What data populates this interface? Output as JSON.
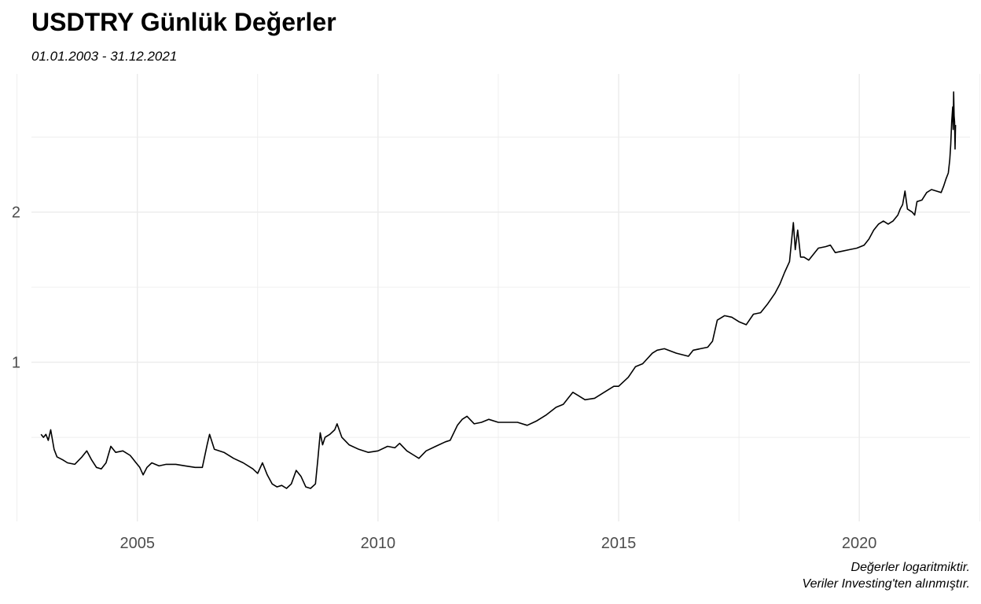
{
  "header": {
    "title": "USDTRY Günlük Değerler",
    "subtitle": "01.01.2003 - 31.12.2021"
  },
  "caption": {
    "line1": "Değerler logaritmiktir.",
    "line2": "Veriler Investing'ten alınmıştır."
  },
  "colors": {
    "line": "#000000",
    "grid": "#ebebeb",
    "tick": "#4d4d4d"
  },
  "chart_data": {
    "type": "line",
    "title": "USDTRY Günlük Değerler",
    "subtitle": "01.01.2003 - 31.12.2021",
    "xlabel": "",
    "ylabel": "",
    "scale_note": "log",
    "grid": true,
    "legend": "none",
    "xlim": [
      2002.8,
      2022.3
    ],
    "ylim": [
      -0.06,
      2.92
    ],
    "x_ticks": [
      2005,
      2010,
      2015,
      2020
    ],
    "x_tick_labels": [
      "2005",
      "2010",
      "2015",
      "2020"
    ],
    "y_ticks": [
      1,
      2
    ],
    "y_tick_labels": [
      "1",
      "2"
    ],
    "series": [
      {
        "x": [
          2003.0,
          2003.05,
          2003.1,
          2003.15,
          2003.2,
          2003.27,
          2003.33,
          2003.45,
          2003.55,
          2003.7,
          2003.85,
          2003.95,
          2004.05,
          2004.15,
          2004.25,
          2004.35,
          2004.45,
          2004.55,
          2004.7,
          2004.85,
          2004.9,
          2004.95,
          2005.05,
          2005.12,
          2005.2,
          2005.3,
          2005.45,
          2005.6,
          2005.8,
          2006.0,
          2006.2,
          2006.35,
          2006.45,
          2006.5,
          2006.6,
          2006.8,
          2007.0,
          2007.2,
          2007.4,
          2007.5,
          2007.6,
          2007.7,
          2007.8,
          2007.9,
          2008.0,
          2008.1,
          2008.2,
          2008.3,
          2008.4,
          2008.5,
          2008.6,
          2008.7,
          2008.75,
          2008.8,
          2008.85,
          2008.9,
          2009.0,
          2009.1,
          2009.15,
          2009.25,
          2009.4,
          2009.6,
          2009.8,
          2010.0,
          2010.2,
          2010.35,
          2010.45,
          2010.6,
          2010.75,
          2010.85,
          2011.0,
          2011.2,
          2011.4,
          2011.5,
          2011.65,
          2011.75,
          2011.85,
          2012.0,
          2012.15,
          2012.3,
          2012.5,
          2012.7,
          2012.9,
          2013.1,
          2013.3,
          2013.5,
          2013.7,
          2013.85,
          2013.95,
          2014.05,
          2014.15,
          2014.3,
          2014.5,
          2014.7,
          2014.9,
          2015.0,
          2015.2,
          2015.35,
          2015.5,
          2015.7,
          2015.8,
          2015.95,
          2016.2,
          2016.45,
          2016.55,
          2016.7,
          2016.85,
          2016.95,
          2017.05,
          2017.2,
          2017.35,
          2017.5,
          2017.65,
          2017.8,
          2017.95,
          2018.1,
          2018.25,
          2018.35,
          2018.45,
          2018.55,
          2018.6,
          2018.63,
          2018.67,
          2018.72,
          2018.78,
          2018.85,
          2018.95,
          2019.05,
          2019.15,
          2019.3,
          2019.4,
          2019.5,
          2019.65,
          2019.8,
          2019.95,
          2020.1,
          2020.2,
          2020.3,
          2020.4,
          2020.5,
          2020.6,
          2020.7,
          2020.8,
          2020.85,
          2020.9,
          2020.95,
          2021.0,
          2021.1,
          2021.15,
          2021.2,
          2021.3,
          2021.4,
          2021.5,
          2021.6,
          2021.7,
          2021.75,
          2021.8,
          2021.85,
          2021.88,
          2021.9,
          2021.92,
          2021.94,
          2021.95,
          2021.96,
          2021.97,
          2021.98,
          2021.99,
          2022.0
        ],
        "values": [
          0.52,
          0.5,
          0.52,
          0.48,
          0.55,
          0.42,
          0.37,
          0.35,
          0.33,
          0.32,
          0.37,
          0.41,
          0.35,
          0.3,
          0.29,
          0.33,
          0.44,
          0.4,
          0.41,
          0.38,
          0.36,
          0.34,
          0.3,
          0.25,
          0.3,
          0.33,
          0.31,
          0.32,
          0.32,
          0.31,
          0.3,
          0.3,
          0.45,
          0.52,
          0.42,
          0.4,
          0.36,
          0.33,
          0.29,
          0.26,
          0.33,
          0.25,
          0.19,
          0.17,
          0.18,
          0.16,
          0.19,
          0.28,
          0.24,
          0.17,
          0.16,
          0.19,
          0.35,
          0.53,
          0.45,
          0.5,
          0.52,
          0.55,
          0.59,
          0.5,
          0.45,
          0.42,
          0.4,
          0.41,
          0.44,
          0.43,
          0.46,
          0.41,
          0.38,
          0.36,
          0.41,
          0.44,
          0.47,
          0.48,
          0.58,
          0.62,
          0.64,
          0.59,
          0.6,
          0.62,
          0.6,
          0.6,
          0.6,
          0.58,
          0.61,
          0.65,
          0.7,
          0.72,
          0.76,
          0.8,
          0.78,
          0.75,
          0.76,
          0.8,
          0.84,
          0.84,
          0.9,
          0.97,
          0.99,
          1.06,
          1.08,
          1.09,
          1.06,
          1.04,
          1.08,
          1.09,
          1.1,
          1.14,
          1.28,
          1.31,
          1.3,
          1.27,
          1.25,
          1.32,
          1.33,
          1.39,
          1.46,
          1.52,
          1.6,
          1.67,
          1.83,
          1.93,
          1.75,
          1.88,
          1.7,
          1.7,
          1.68,
          1.72,
          1.76,
          1.77,
          1.78,
          1.73,
          1.74,
          1.75,
          1.76,
          1.78,
          1.82,
          1.88,
          1.92,
          1.94,
          1.92,
          1.94,
          1.98,
          2.02,
          2.05,
          2.14,
          2.02,
          2.0,
          1.98,
          2.07,
          2.08,
          2.13,
          2.15,
          2.14,
          2.13,
          2.17,
          2.22,
          2.26,
          2.35,
          2.45,
          2.6,
          2.7,
          2.55,
          2.8,
          2.64,
          2.6,
          2.42,
          2.58
        ]
      }
    ]
  }
}
